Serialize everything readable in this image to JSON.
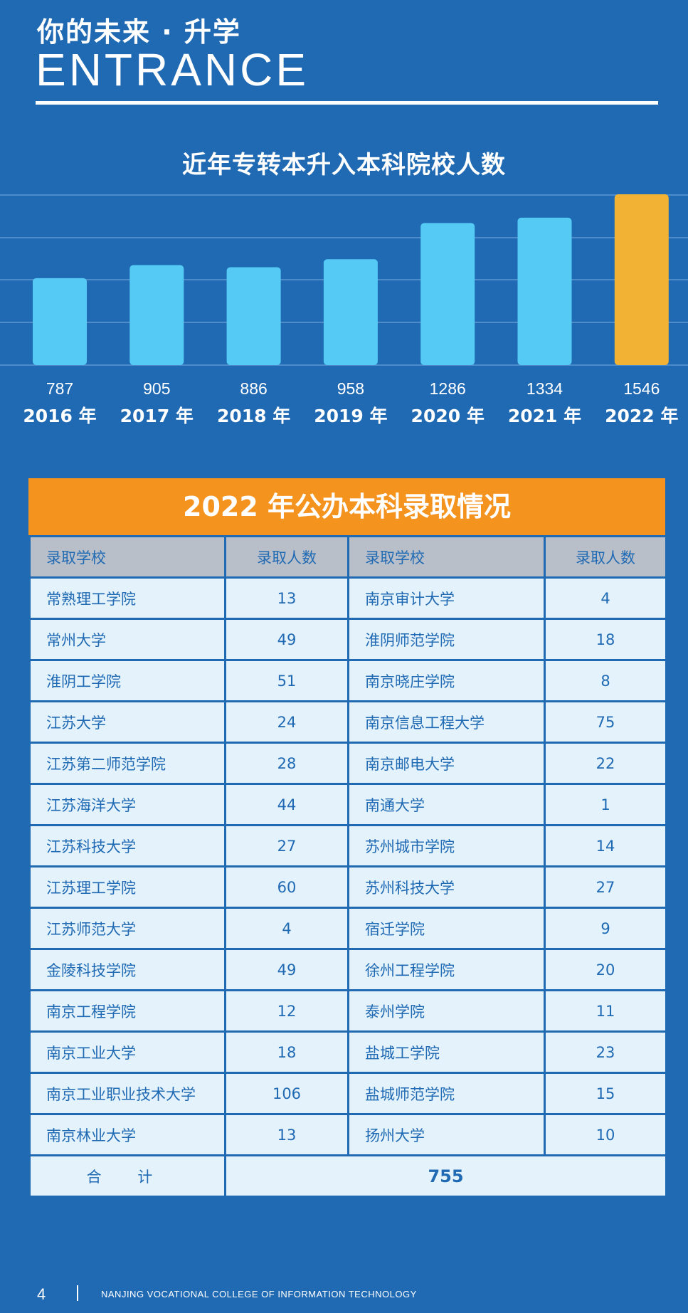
{
  "header": {
    "title_cn": "你的未来 · 升学",
    "title_en": "ENTRANCE"
  },
  "chart_data": {
    "type": "bar",
    "title": "近年专转本升入本科院校人数",
    "categories": [
      "2016 年",
      "2017 年",
      "2018 年",
      "2019 年",
      "2020 年",
      "2021 年",
      "2022 年"
    ],
    "values": [
      787,
      905,
      886,
      958,
      1286,
      1334,
      1546
    ],
    "colors": {
      "bar": "#54caf5",
      "highlight": "#f2b233",
      "grid": "#5b97d2"
    },
    "highlight_index": 6,
    "grid": true
  },
  "table": {
    "title": "2022 年公办本科录取情况",
    "headers": [
      "录取学校",
      "录取人数",
      "录取学校",
      "录取人数"
    ],
    "rows": [
      [
        "常熟理工学院",
        "13",
        "南京审计大学",
        "4"
      ],
      [
        "常州大学",
        "49",
        "淮阴师范学院",
        "18"
      ],
      [
        "淮阴工学院",
        "51",
        "南京晓庄学院",
        "8"
      ],
      [
        "江苏大学",
        "24",
        "南京信息工程大学",
        "75"
      ],
      [
        "江苏第二师范学院",
        "28",
        "南京邮电大学",
        "22"
      ],
      [
        "江苏海洋大学",
        "44",
        "南通大学",
        "1"
      ],
      [
        "江苏科技大学",
        "27",
        "苏州城市学院",
        "14"
      ],
      [
        "江苏理工学院",
        "60",
        "苏州科技大学",
        "27"
      ],
      [
        "江苏师范大学",
        "4",
        "宿迁学院",
        "9"
      ],
      [
        "金陵科技学院",
        "49",
        "徐州工程学院",
        "20"
      ],
      [
        "南京工程学院",
        "12",
        "泰州学院",
        "11"
      ],
      [
        "南京工业大学",
        "18",
        "盐城工学院",
        "23"
      ],
      [
        "南京工业职业技术大学",
        "106",
        "盐城师范学院",
        "15"
      ],
      [
        "南京林业大学",
        "13",
        "扬州大学",
        "10"
      ]
    ],
    "total_label": "合 计",
    "total_value": "755"
  },
  "footer": {
    "page": "4",
    "school": "NANJING  VOCATIONAL COLLEGE OF INFORMATION TECHNOLOGY"
  }
}
